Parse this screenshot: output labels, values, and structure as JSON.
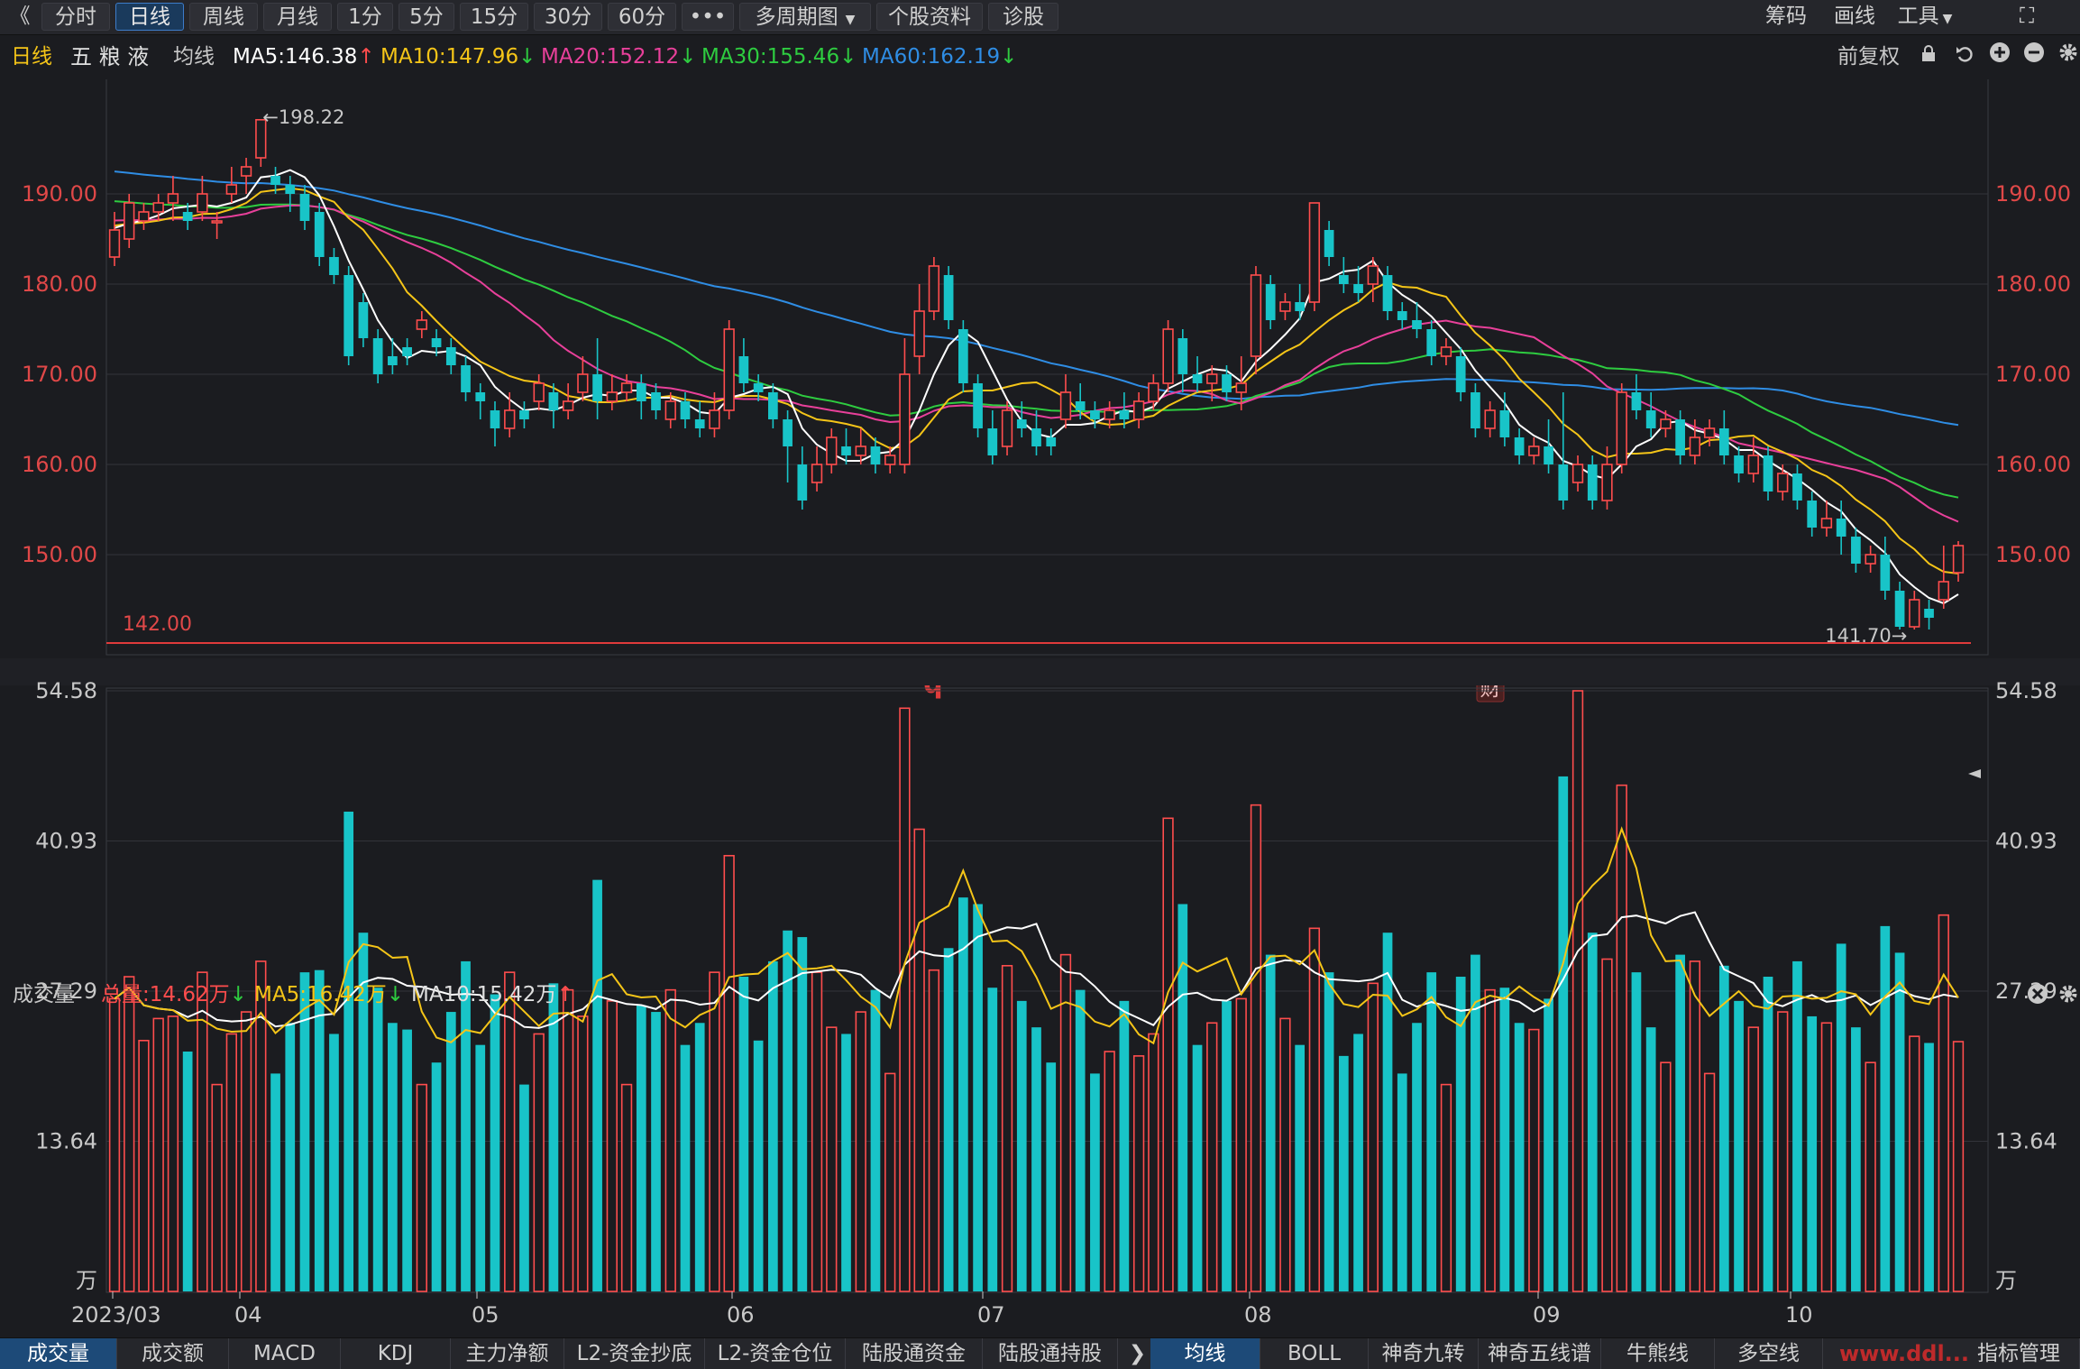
{
  "toolbar": {
    "back_glyph": "《",
    "buttons": [
      "分时",
      "日线",
      "周线",
      "月线",
      "1分",
      "5分",
      "15分",
      "30分",
      "60分",
      "•••",
      "多周期图",
      "个股资料",
      "诊股"
    ],
    "active": "日线",
    "multi_arrow": "▼",
    "right": [
      "筹码",
      "画线",
      "工具"
    ],
    "tools_arrow": "▼",
    "fullscreen_icon": "⛶"
  },
  "info": {
    "period": "日线",
    "stock_name": "五 粮 液",
    "ma_label": "均线",
    "ma5": "MA5:146.38",
    "ma10": "MA10:147.96",
    "ma20": "MA20:152.12",
    "ma30": "MA30:155.46",
    "ma60": "MA60:162.19",
    "arrow_up": "↑",
    "arrow_down": "↓",
    "adjust": "前复权",
    "colors": {
      "ma5": "#ffffff",
      "ma10": "#f5c518",
      "ma20": "#e8409a",
      "ma30": "#2ecc40",
      "ma60": "#2f8de4",
      "up": "#ff4d4d",
      "down": "#18c4c8"
    }
  },
  "volume_info": {
    "label": "成交量",
    "total": "总量:14.62万",
    "ma5": "MA5:16.42万",
    "ma10": "MA10:15.42万"
  },
  "bottom": {
    "tabs_left": [
      "成交量",
      "成交额",
      "MACD",
      "KDJ",
      "主力净额",
      "L2-资金抄底",
      "L2-资金仓位",
      "陆股通资金",
      "陆股通持股"
    ],
    "more_arrow": "❯",
    "tabs_right": [
      "均线",
      "BOLL",
      "神奇九转",
      "神奇五线谱",
      "牛熊线",
      "多空线"
    ],
    "right_label": "指标管理",
    "watermark": "www.ddl...",
    "active_left": "成交量",
    "active_right": "均线"
  },
  "chart_data": [
    {
      "type": "candlestick",
      "title": "五 粮 液",
      "y_ticks": [
        "190.00",
        "180.00",
        "170.00",
        "160.00",
        "150.00"
      ],
      "ylim": [
        139.5,
        201.5
      ],
      "annotations": {
        "high": "←198.22",
        "low": "141.70→",
        "support": "142.00",
        "marker_q": "q",
        "marker_cai": "财"
      },
      "x_months": [
        "2023/03",
        "04",
        "05",
        "06",
        "07",
        "08",
        "09",
        "10"
      ],
      "candles": [
        [
          183,
          186,
          182,
          188
        ],
        [
          185,
          189,
          184,
          190
        ],
        [
          187,
          188,
          186,
          189
        ],
        [
          188,
          189,
          187,
          190
        ],
        [
          189,
          190,
          187,
          192
        ],
        [
          188,
          187,
          186,
          189
        ],
        [
          188,
          190,
          187,
          192
        ],
        [
          187,
          187,
          185,
          188
        ],
        [
          190,
          191,
          189,
          193
        ],
        [
          192,
          193,
          190,
          194
        ],
        [
          194,
          198.22,
          193,
          198.22
        ],
        [
          192,
          191,
          190,
          193
        ],
        [
          191,
          190,
          188,
          192
        ],
        [
          190,
          187,
          186,
          191
        ],
        [
          188,
          183,
          182,
          189
        ],
        [
          183,
          181,
          180,
          184
        ],
        [
          181,
          172,
          171,
          182
        ],
        [
          178,
          174,
          173,
          179
        ],
        [
          174,
          170,
          169,
          175
        ],
        [
          172,
          171,
          170,
          174
        ],
        [
          173,
          172,
          171,
          174
        ],
        [
          175,
          176,
          174,
          177
        ],
        [
          174,
          173,
          172,
          175
        ],
        [
          173,
          171,
          170,
          174
        ],
        [
          171,
          168,
          167,
          172
        ],
        [
          168,
          167,
          165,
          169
        ],
        [
          166,
          164,
          162,
          167
        ],
        [
          164,
          166,
          163,
          168
        ],
        [
          166,
          165,
          164,
          167
        ],
        [
          167,
          169,
          166,
          170
        ],
        [
          168,
          166,
          164,
          169
        ],
        [
          166,
          167,
          165,
          169
        ],
        [
          168,
          170,
          167,
          172
        ],
        [
          170,
          167,
          165,
          174
        ],
        [
          167,
          168,
          166,
          170
        ],
        [
          168,
          169,
          167,
          170
        ],
        [
          169,
          167,
          165,
          170
        ],
        [
          168,
          166,
          165,
          169
        ],
        [
          165,
          167,
          164,
          168
        ],
        [
          167,
          165,
          164,
          168
        ],
        [
          165,
          164,
          163,
          167
        ],
        [
          164,
          166,
          163,
          168
        ],
        [
          166,
          175,
          165,
          176
        ],
        [
          172,
          169,
          168,
          174
        ],
        [
          169,
          168,
          167,
          170
        ],
        [
          168,
          165,
          164,
          169
        ],
        [
          165,
          162,
          158,
          166
        ],
        [
          160,
          156,
          155,
          162
        ],
        [
          158,
          160,
          157,
          162
        ],
        [
          160,
          163,
          159,
          164
        ],
        [
          162,
          161,
          160,
          164
        ],
        [
          161,
          162,
          160,
          164
        ],
        [
          162,
          160,
          159,
          163
        ],
        [
          160,
          161,
          159,
          162
        ],
        [
          160,
          170,
          159,
          174
        ],
        [
          172,
          177,
          170,
          180
        ],
        [
          177,
          182,
          176,
          183
        ],
        [
          181,
          176,
          175,
          182
        ],
        [
          175,
          169,
          168,
          176
        ],
        [
          169,
          164,
          163,
          170
        ],
        [
          164,
          161,
          160,
          166
        ],
        [
          162,
          166,
          161,
          167
        ],
        [
          165,
          164,
          163,
          167
        ],
        [
          164,
          162,
          161,
          166
        ],
        [
          163,
          162,
          161,
          164
        ],
        [
          165,
          168,
          164,
          170
        ],
        [
          167,
          166,
          165,
          169
        ],
        [
          166,
          165,
          164,
          167
        ],
        [
          165,
          166,
          164,
          167
        ],
        [
          166,
          165,
          164,
          168
        ],
        [
          165,
          167,
          164,
          168
        ],
        [
          167,
          169,
          166,
          170
        ],
        [
          169,
          175,
          168,
          176
        ],
        [
          174,
          170,
          168,
          175
        ],
        [
          170,
          169,
          168,
          172
        ],
        [
          169,
          170,
          167,
          171
        ],
        [
          170,
          168,
          167,
          171
        ],
        [
          168,
          169,
          166,
          172
        ],
        [
          172,
          181,
          170,
          182
        ],
        [
          180,
          176,
          175,
          181
        ],
        [
          177,
          178,
          176,
          179
        ],
        [
          178,
          177,
          176,
          180
        ],
        [
          178,
          189,
          177,
          189
        ],
        [
          186,
          183,
          182,
          187
        ],
        [
          181,
          180,
          179,
          183
        ],
        [
          180,
          179,
          178,
          182
        ],
        [
          180,
          182,
          178,
          183
        ],
        [
          181,
          177,
          176,
          182
        ],
        [
          177,
          176,
          175,
          178
        ],
        [
          176,
          175,
          174,
          178
        ],
        [
          175,
          172,
          171,
          176
        ],
        [
          172,
          173,
          171,
          174
        ],
        [
          172,
          168,
          167,
          173
        ],
        [
          168,
          164,
          163,
          169
        ],
        [
          164,
          166,
          163,
          167
        ],
        [
          166,
          163,
          162,
          168
        ],
        [
          163,
          161,
          160,
          164
        ],
        [
          161,
          162,
          160,
          163
        ],
        [
          162,
          160,
          159,
          165
        ],
        [
          160,
          156,
          155,
          168
        ],
        [
          158,
          160,
          157,
          161
        ],
        [
          160,
          156,
          155,
          161
        ],
        [
          156,
          160,
          155,
          162
        ],
        [
          160,
          168,
          159,
          169
        ],
        [
          168,
          166,
          165,
          170
        ],
        [
          166,
          164,
          163,
          168
        ],
        [
          164,
          165,
          163,
          166
        ],
        [
          165,
          161,
          160,
          166
        ],
        [
          161,
          163,
          160,
          165
        ],
        [
          163,
          164,
          162,
          165
        ],
        [
          164,
          161,
          160,
          166
        ],
        [
          161,
          159,
          158,
          162
        ],
        [
          159,
          161,
          158,
          163
        ],
        [
          161,
          157,
          156,
          162
        ],
        [
          157,
          159,
          156,
          160
        ],
        [
          159,
          156,
          155,
          160
        ],
        [
          156,
          153,
          152,
          157
        ],
        [
          153,
          154,
          152,
          156
        ],
        [
          154,
          152,
          150,
          156
        ],
        [
          152,
          149,
          148,
          153
        ],
        [
          149,
          150,
          148,
          151
        ],
        [
          150,
          146,
          145,
          152
        ],
        [
          146,
          142,
          141.7,
          147
        ],
        [
          142,
          145,
          141.7,
          146
        ],
        [
          144,
          143,
          141.7,
          145
        ],
        [
          145,
          147,
          144,
          151
        ],
        [
          148,
          151,
          147,
          151.5
        ]
      ]
    },
    {
      "type": "bar",
      "title": "成交量",
      "unit": "万",
      "y_ticks": [
        "54.58",
        "40.93",
        "27.29",
        "13.64"
      ],
      "ylim": [
        0,
        54.58
      ]
    }
  ]
}
